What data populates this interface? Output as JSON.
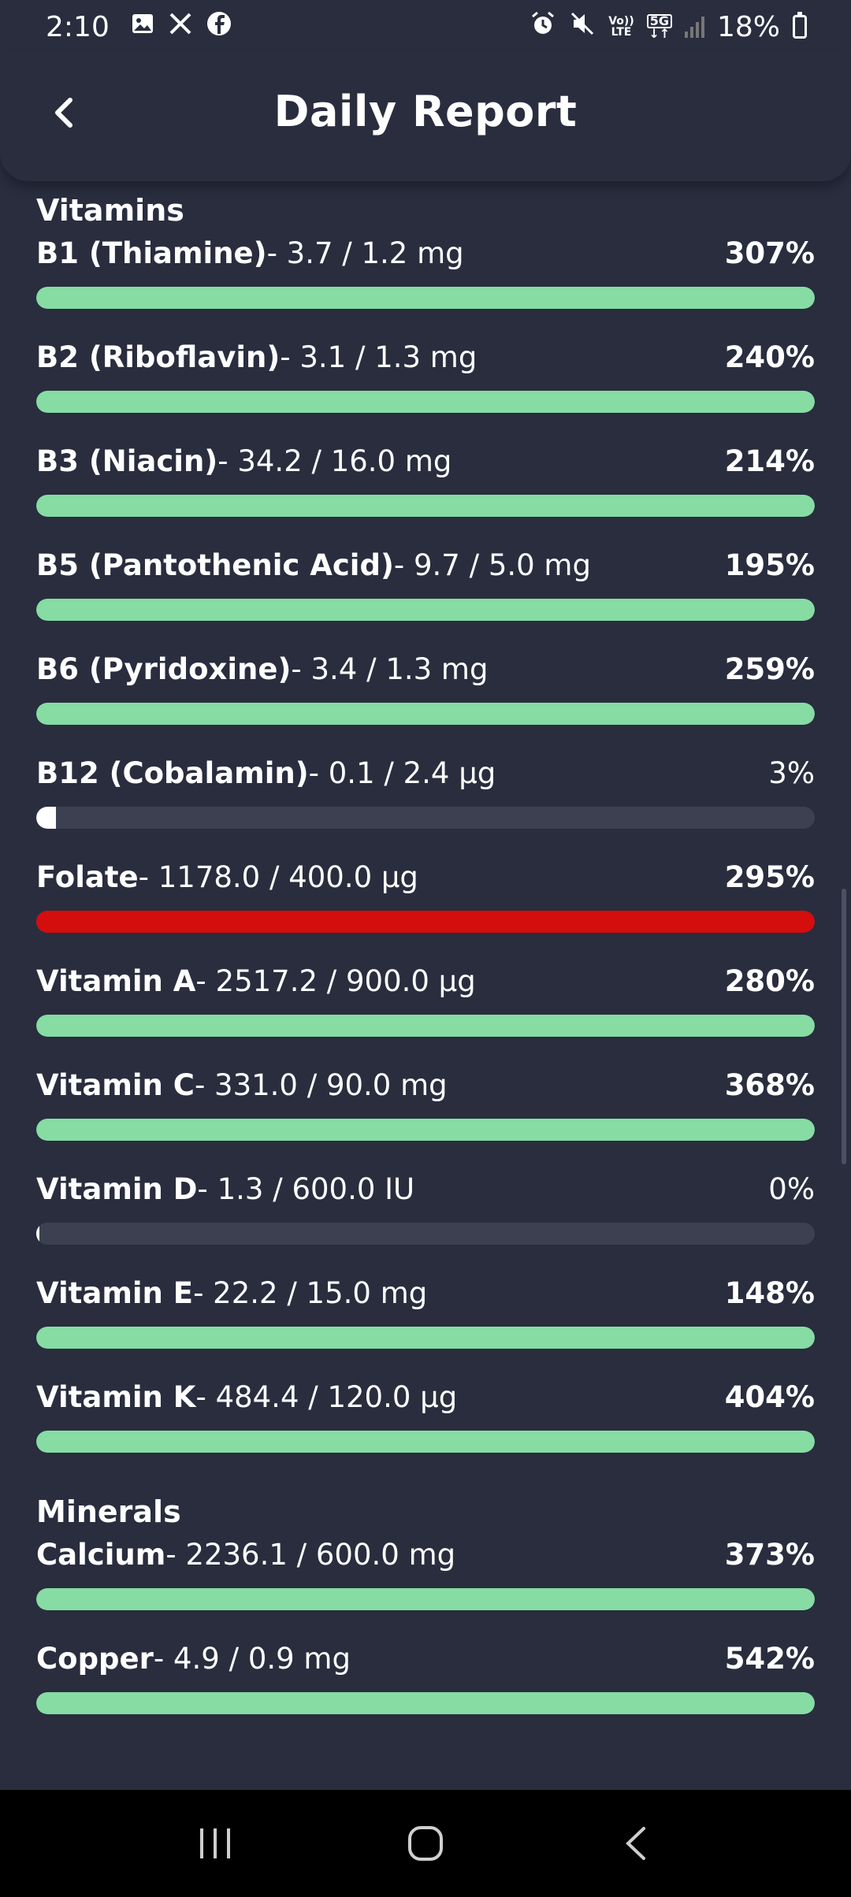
{
  "status_bar": {
    "time": "2:10",
    "battery": "18%",
    "volte_top": "Vo))",
    "volte_bottom": "LTE",
    "net_top": "5G",
    "net_bottom": "↓↑",
    "icons": [
      "gallery-icon",
      "x-icon",
      "facebook-icon",
      "alarm-icon",
      "mute-icon",
      "volte-icon",
      "5g-icon",
      "signal-icon",
      "battery-icon"
    ]
  },
  "header": {
    "title": "Daily Report",
    "back_icon": "chevron-left-icon"
  },
  "colors": {
    "bar_normal": "#86dca3",
    "bar_over": "#d40d0d",
    "bar_low": "#ffffff",
    "track": "#3c4152",
    "background": "#292d3e"
  },
  "sections": [
    {
      "title": "Vitamins",
      "items": [
        {
          "name": "B1 (Thiamine)",
          "amount": "- 3.7 / 1.2 mg",
          "percent": "307%",
          "fill": 1.0,
          "state": "normal"
        },
        {
          "name": "B2 (Riboflavin)",
          "amount": "- 3.1 / 1.3 mg",
          "percent": "240%",
          "fill": 1.0,
          "state": "normal"
        },
        {
          "name": "B3 (Niacin)",
          "amount": "- 34.2 / 16.0 mg",
          "percent": "214%",
          "fill": 1.0,
          "state": "normal"
        },
        {
          "name": "B5 (Pantothenic Acid)",
          "amount": "- 9.7 / 5.0 mg",
          "percent": "195%",
          "fill": 1.0,
          "state": "normal"
        },
        {
          "name": "B6 (Pyridoxine)",
          "amount": "- 3.4 / 1.3 mg",
          "percent": "259%",
          "fill": 1.0,
          "state": "normal"
        },
        {
          "name": "B12 (Cobalamin)",
          "amount": "- 0.1 / 2.4 μg",
          "percent": "3%",
          "fill": 0.025,
          "state": "low"
        },
        {
          "name": "Folate",
          "amount": "- 1178.0 / 400.0 μg",
          "percent": "295%",
          "fill": 1.0,
          "state": "over"
        },
        {
          "name": "Vitamin A",
          "amount": "- 2517.2 / 900.0 μg",
          "percent": "280%",
          "fill": 1.0,
          "state": "normal"
        },
        {
          "name": "Vitamin C",
          "amount": "- 331.0 / 90.0 mg",
          "percent": "368%",
          "fill": 1.0,
          "state": "normal"
        },
        {
          "name": "Vitamin D",
          "amount": "- 1.3 / 600.0 IU",
          "percent": "0%",
          "fill": 0.003,
          "state": "low"
        },
        {
          "name": "Vitamin E",
          "amount": "- 22.2 / 15.0 mg",
          "percent": "148%",
          "fill": 1.0,
          "state": "normal"
        },
        {
          "name": "Vitamin K",
          "amount": "- 484.4 / 120.0 μg",
          "percent": "404%",
          "fill": 1.0,
          "state": "normal"
        }
      ]
    },
    {
      "title": "Minerals",
      "items": [
        {
          "name": "Calcium",
          "amount": "- 2236.1 / 600.0 mg",
          "percent": "373%",
          "fill": 1.0,
          "state": "normal"
        },
        {
          "name": "Copper",
          "amount": "- 4.9 / 0.9 mg",
          "percent": "542%",
          "fill": 1.0,
          "state": "normal"
        }
      ]
    }
  ],
  "nav_bar": {
    "icons": [
      "recents-icon",
      "home-icon",
      "back-icon"
    ]
  }
}
